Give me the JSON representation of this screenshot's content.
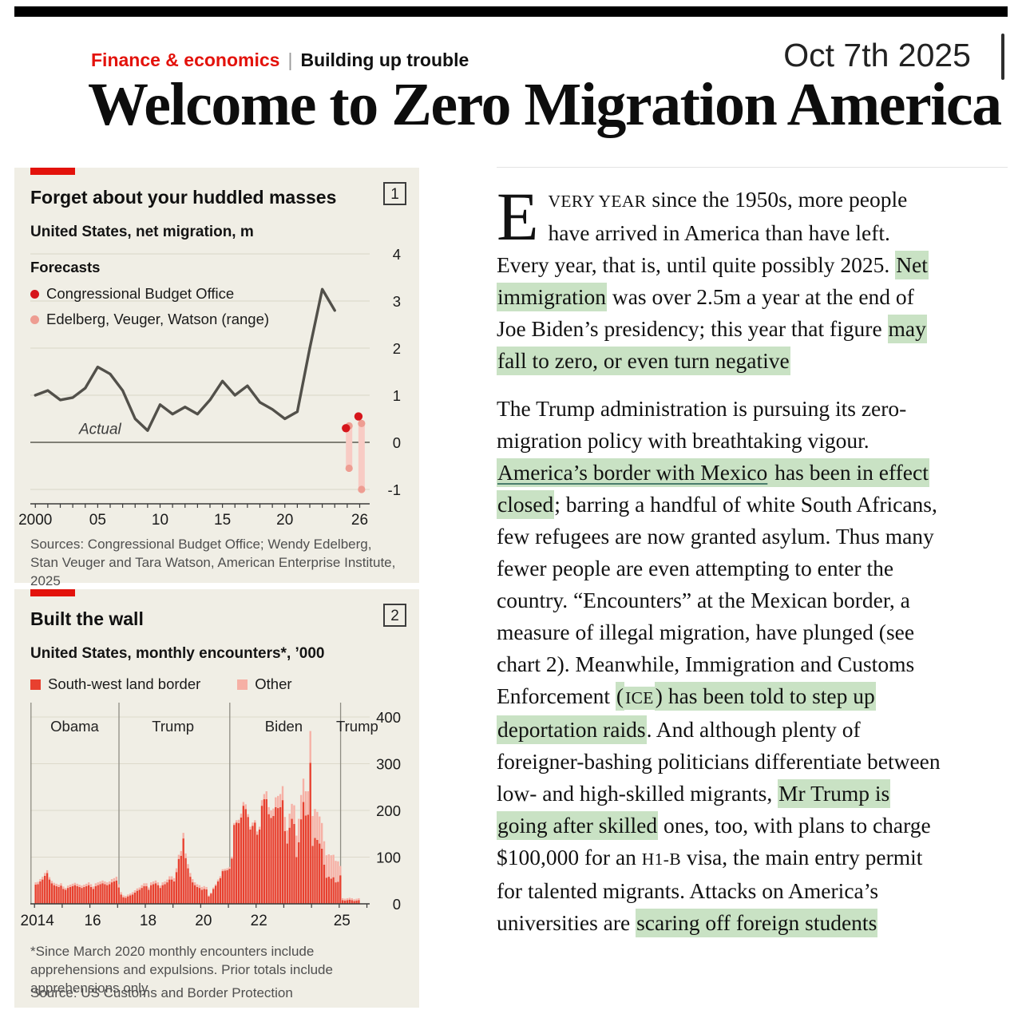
{
  "header": {
    "section": "Finance & economics",
    "separator": "|",
    "topic": "Building up trouble",
    "date": "Oct 7th 2025",
    "headline": "Welcome to Zero Migration America"
  },
  "colors": {
    "econ_red": "#e3120b",
    "highlight_green": "#c9e2c4",
    "chart_bg": "#f0eee5",
    "line_gray": "#52504a",
    "cbo_red": "#d6151b",
    "range_dot_pink": "#ee9d92",
    "range_bar_pink": "#f8cbc4",
    "bar_red": "#e8402f",
    "bar_pink": "#f6b0a5"
  },
  "chart1": {
    "badge": "1",
    "title": "Forget about your huddled masses",
    "subtitle": "United States, net migration, m",
    "legend_title": "Forecasts",
    "legend": [
      {
        "label": "Congressional Budget Office"
      },
      {
        "label": "Edelberg, Veuger, Watson (range)"
      }
    ],
    "annotation": "Actual",
    "sources": "Sources: Congressional Budget Office; Wendy Edelberg, Stan Veuger and Tara Watson, American Enterprise Institute, 2025",
    "chart_data": {
      "type": "line",
      "title": "Forget about your huddled masses",
      "subtitle": "United States, net migration, m",
      "x": [
        2000,
        2001,
        2002,
        2003,
        2004,
        2005,
        2006,
        2007,
        2008,
        2009,
        2010,
        2011,
        2012,
        2013,
        2014,
        2015,
        2016,
        2017,
        2018,
        2019,
        2020,
        2021,
        2022,
        2023,
        2024
      ],
      "values": [
        1.0,
        1.1,
        0.9,
        0.95,
        1.15,
        1.6,
        1.45,
        1.1,
        0.5,
        0.25,
        0.8,
        0.6,
        0.75,
        0.6,
        0.9,
        1.3,
        1.0,
        1.2,
        0.85,
        0.7,
        0.5,
        0.65,
        2.0,
        3.25,
        2.8
      ],
      "ylim": [
        -1,
        4
      ],
      "yticks": [
        -1,
        0,
        1,
        2,
        3,
        4
      ],
      "xlim": [
        1999.6,
        2026.8
      ],
      "x_ticks_labeled": [
        [
          2000,
          "2000"
        ],
        [
          2005,
          "05"
        ],
        [
          2010,
          "10"
        ],
        [
          2015,
          "15"
        ],
        [
          2020,
          "20"
        ],
        [
          2026,
          "26"
        ]
      ],
      "forecast_cbo": [
        {
          "x": 2024.9,
          "y": 0.3
        },
        {
          "x": 2025.9,
          "y": 0.55
        }
      ],
      "forecast_range": [
        {
          "x": 2025.15,
          "high": 0.35,
          "low": -0.55
        },
        {
          "x": 2026.15,
          "high": 0.4,
          "low": -1.0
        }
      ],
      "grid": true,
      "legend_position": "top-left"
    }
  },
  "chart2": {
    "badge": "2",
    "title": "Built the wall",
    "subtitle": "United States, monthly encounters*, ’000",
    "legend": [
      {
        "label": "South-west land border"
      },
      {
        "label": "Other"
      }
    ],
    "footnote": "*Since March 2020 monthly encounters include apprehensions and expulsions. Prior totals include apprehensions only",
    "source": "Source: US Customs and Border Protection",
    "chart_data": {
      "type": "bar",
      "stacked": true,
      "title": "Built the wall",
      "subtitle": "United States, monthly encounters, '000",
      "series_names": [
        "South-west land border",
        "Other"
      ],
      "ylim": [
        0,
        400
      ],
      "yticks": [
        0,
        100,
        200,
        300,
        400
      ],
      "xlim": [
        2013.85,
        2026.1
      ],
      "x_ticks_labeled": [
        [
          2014,
          "2014"
        ],
        [
          2016,
          "16"
        ],
        [
          2018,
          "18"
        ],
        [
          2020,
          "20"
        ],
        [
          2022,
          "22"
        ],
        [
          2025,
          "25"
        ]
      ],
      "president_labels": [
        {
          "label": "Obama",
          "x": 2015.45
        },
        {
          "label": "Trump",
          "x": 2019.0
        },
        {
          "label": "Biden",
          "x": 2023.0
        },
        {
          "label": "Trump",
          "x": 2025.65
        }
      ],
      "divider_x": [
        2017.05,
        2021.05,
        2025.05
      ],
      "years": [
        {
          "y": 2014,
          "sw": [
            41,
            42,
            48,
            52,
            60,
            66,
            52,
            44,
            40,
            38,
            36,
            39
          ],
          "other": [
            5,
            5,
            5,
            6,
            6,
            6,
            5,
            5,
            5,
            5,
            5,
            5
          ]
        },
        {
          "y": 2015,
          "sw": [
            32,
            30,
            34,
            36,
            38,
            40,
            38,
            36,
            34,
            36,
            38,
            40
          ],
          "other": [
            5,
            4,
            5,
            5,
            5,
            5,
            5,
            5,
            5,
            5,
            5,
            6
          ]
        },
        {
          "y": 2016,
          "sw": [
            36,
            32,
            38,
            40,
            42,
            44,
            42,
            40,
            42,
            46,
            48,
            50
          ],
          "other": [
            6,
            5,
            6,
            6,
            6,
            6,
            6,
            6,
            6,
            7,
            7,
            8
          ]
        },
        {
          "y": 2017,
          "sw": [
            35,
            20,
            14,
            13,
            16,
            18,
            20,
            24,
            28,
            30,
            34,
            38
          ],
          "other": [
            7,
            5,
            4,
            4,
            4,
            4,
            5,
            5,
            5,
            5,
            6,
            6
          ]
        },
        {
          "y": 2018,
          "sw": [
            38,
            30,
            40,
            42,
            44,
            40,
            34,
            40,
            42,
            46,
            52,
            52
          ],
          "other": [
            6,
            5,
            6,
            6,
            6,
            6,
            5,
            6,
            6,
            6,
            7,
            7
          ]
        },
        {
          "y": 2019,
          "sw": [
            48,
            68,
            96,
            103,
            140,
            98,
            76,
            58,
            46,
            40,
            36,
            34
          ],
          "other": [
            7,
            8,
            9,
            10,
            12,
            10,
            9,
            8,
            7,
            6,
            6,
            6
          ]
        },
        {
          "y": 2020,
          "sw": [
            30,
            32,
            31,
            16,
            22,
            32,
            39,
            48,
            55,
            70,
            71,
            72
          ],
          "other": [
            6,
            6,
            5,
            2,
            2,
            3,
            3,
            4,
            4,
            4,
            4,
            4
          ]
        },
        {
          "y": 2021,
          "sw": [
            75,
            97,
            169,
            174,
            173,
            185,
            210,
            203,
            186,
            159,
            167,
            174
          ],
          "other": [
            4,
            4,
            4,
            5,
            7,
            8,
            8,
            10,
            6,
            6,
            7,
            5
          ]
        },
        {
          "y": 2022,
          "sw": [
            148,
            159,
            210,
            224,
            224,
            192,
            184,
            188,
            207,
            205,
            207,
            222
          ],
          "other": [
            7,
            6,
            12,
            11,
            17,
            15,
            16,
            16,
            21,
            26,
            28,
            30
          ]
        },
        {
          "y": 2023,
          "sw": [
            156,
            129,
            163,
            182,
            171,
            100,
            132,
            181,
            218,
            189,
            191,
            302
          ],
          "other": [
            30,
            28,
            30,
            32,
            40,
            46,
            50,
            52,
            50,
            52,
            50,
            68
          ]
        },
        {
          "y": 2024,
          "sw": [
            124,
            141,
            137,
            129,
            118,
            84,
            56,
            58,
            54,
            57,
            46,
            47
          ],
          "other": [
            64,
            62,
            60,
            58,
            55,
            50,
            48,
            48,
            50,
            48,
            46,
            44
          ]
        },
        {
          "y": 2025,
          "sw": [
            61,
            8,
            7,
            8,
            9,
            8,
            6,
            7,
            8
          ],
          "other": [
            20,
            4,
            4,
            4,
            4,
            4,
            4,
            4,
            4
          ]
        }
      ],
      "grid": true,
      "legend_position": "top"
    }
  },
  "article": {
    "paragraphs": [
      {
        "dropcap": "E",
        "segments": [
          {
            "text": "VERY YEAR",
            "smallcaps": true
          },
          {
            "text": " since the 1950s, more people have arrived in America than have left. Every year, that is, until quite possibly 2025. "
          },
          {
            "text": "Net immigration",
            "highlight": true
          },
          {
            "text": " was over 2.5m a year at the end of Joe Biden’s presidency; this year that figure "
          },
          {
            "text": "may fall to zero, or even turn negative",
            "highlight": true
          }
        ]
      },
      {
        "segments": [
          {
            "text": "The Trump administration is pursuing its zero-migration policy with breathtaking vigour. "
          },
          {
            "text": "America’s border with Mexico",
            "highlight": true,
            "underline": true
          },
          {
            "text": " has been in effect closed",
            "highlight": true
          },
          {
            "text": "; barring a handful of white South Africans, few refugees are now granted asylum. Thus many fewer people are even attempting to enter the country. “Encounters” at the Mexican border, a measure of illegal migration, have plunged (see chart 2). Meanwhile, Immigration and Customs Enforcement "
          },
          {
            "text": "(",
            "highlight": true
          },
          {
            "text": "ICE",
            "highlight": true,
            "smallcaps": true
          },
          {
            "text": ") has been told to step up deportation raids",
            "highlight": true
          },
          {
            "text": ". And although plenty of foreigner-bashing politicians differentiate between low- and high-skilled migrants, "
          },
          {
            "text": "Mr Trump is going after skilled",
            "highlight": true
          },
          {
            "text": " ones, too, with plans to charge $100,000 for an "
          },
          {
            "text": "H1-B",
            "smallcaps": true
          },
          {
            "text": " visa, the main entry permit for talented migrants. Attacks on America’s universities are "
          },
          {
            "text": "scaring off foreign students",
            "highlight": true
          }
        ]
      }
    ]
  }
}
